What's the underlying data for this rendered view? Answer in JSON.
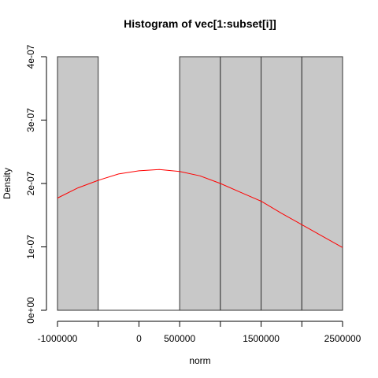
{
  "chart_data": {
    "type": "bar",
    "title": "Histogram of vec[1:subset[i]]",
    "xlabel": "norm",
    "ylabel": "Density",
    "xlim": [
      -1000000,
      2500000
    ],
    "ylim": [
      0,
      4e-07
    ],
    "bins": [
      {
        "x0": -1000000,
        "x1": -500000,
        "density": 4e-07
      },
      {
        "x0": -500000,
        "x1": 0,
        "density": 0
      },
      {
        "x0": 0,
        "x1": 500000,
        "density": 0
      },
      {
        "x0": 500000,
        "x1": 1000000,
        "density": 4e-07
      },
      {
        "x0": 1000000,
        "x1": 1500000,
        "density": 4e-07
      },
      {
        "x0": 1500000,
        "x1": 2000000,
        "density": 4e-07
      },
      {
        "x0": 2000000,
        "x1": 2500000,
        "density": 4e-07
      }
    ],
    "x_ticks": [
      -1000000,
      -500000,
      0,
      500000,
      1000000,
      1500000,
      2000000,
      2500000
    ],
    "x_tick_labels": [
      "-1000000",
      "",
      "0",
      "500000",
      "",
      "1500000",
      "",
      "2500000"
    ],
    "y_ticks": [
      0,
      1e-07,
      2e-07,
      3e-07,
      4e-07
    ],
    "y_tick_labels": [
      "0e+00",
      "1e-07",
      "2e-07",
      "3e-07",
      "4e-07"
    ],
    "density_curve": {
      "type": "line",
      "x": [
        -1000000,
        -750000,
        -500000,
        -250000,
        0,
        250000,
        500000,
        750000,
        1000000,
        1250000,
        1500000,
        1750000,
        2000000,
        2250000,
        2500000
      ],
      "y": [
        1.77e-07,
        1.93e-07,
        2.05e-07,
        2.15e-07,
        2.2e-07,
        2.22e-07,
        2.19e-07,
        2.12e-07,
        2e-07,
        1.86e-07,
        1.72e-07,
        1.53e-07,
        1.35e-07,
        1.17e-07,
        9.9e-08
      ]
    },
    "colors": {
      "bar_fill": "#c8c8c8",
      "bar_stroke": "#333333",
      "curve": "#ff0000",
      "axis": "#000000"
    }
  }
}
